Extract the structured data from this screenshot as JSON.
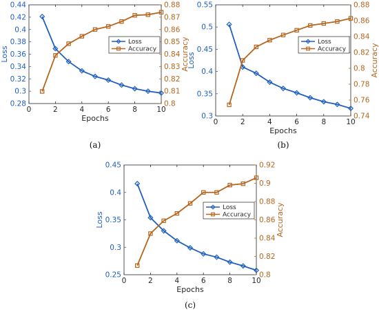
{
  "chart_data": [
    {
      "type": "line",
      "caption": "(a)",
      "xlabel": "Epochs",
      "x": [
        1,
        2,
        3,
        4,
        5,
        6,
        7,
        8,
        9,
        10
      ],
      "xlim": [
        0,
        10
      ],
      "xticks": [
        0,
        2,
        4,
        6,
        8,
        10
      ],
      "y_left": {
        "label": "Loss",
        "lim": [
          0.28,
          0.44
        ],
        "ticks": [
          0.28,
          0.3,
          0.32,
          0.34,
          0.36,
          0.38,
          0.4,
          0.42,
          0.44
        ]
      },
      "y_right": {
        "label": "Accuracy",
        "lim": [
          0.8,
          0.88
        ],
        "ticks": [
          0.8,
          0.81,
          0.82,
          0.83,
          0.84,
          0.85,
          0.86,
          0.87,
          0.88
        ]
      },
      "series": [
        {
          "name": "Loss",
          "axis": "left",
          "color": "#1f5fbf",
          "marker": "diamond",
          "values": [
            0.421,
            0.369,
            0.348,
            0.333,
            0.324,
            0.318,
            0.31,
            0.304,
            0.3,
            0.297
          ]
        },
        {
          "name": "Accuracy",
          "axis": "right",
          "color": "#b5651d",
          "marker": "square",
          "values": [
            0.8098,
            0.839,
            0.8485,
            0.8545,
            0.86,
            0.8625,
            0.8665,
            0.8715,
            0.872,
            0.874
          ]
        }
      ],
      "legend": "top-right",
      "grid": false
    },
    {
      "type": "line",
      "caption": "(b)",
      "xlabel": "Epochs",
      "x": [
        1,
        2,
        3,
        4,
        5,
        6,
        7,
        8,
        9,
        10
      ],
      "xlim": [
        0,
        10
      ],
      "xticks": [
        0,
        2,
        4,
        6,
        8,
        10
      ],
      "y_left": {
        "label": "Loss",
        "lim": [
          0.3,
          0.55
        ],
        "ticks": [
          0.3,
          0.35,
          0.4,
          0.45,
          0.5,
          0.55
        ]
      },
      "y_right": {
        "label": "Accuracy",
        "lim": [
          0.74,
          0.88
        ],
        "ticks": [
          0.74,
          0.76,
          0.78,
          0.8,
          0.82,
          0.84,
          0.86,
          0.88
        ]
      },
      "series": [
        {
          "name": "Loss",
          "axis": "left",
          "color": "#1f5fbf",
          "marker": "diamond",
          "values": [
            0.506,
            0.41,
            0.396,
            0.376,
            0.362,
            0.352,
            0.341,
            0.332,
            0.326,
            0.317
          ]
        },
        {
          "name": "Accuracy",
          "axis": "right",
          "color": "#b5651d",
          "marker": "square",
          "values": [
            0.754,
            0.81,
            0.827,
            0.8355,
            0.842,
            0.848,
            0.854,
            0.8565,
            0.859,
            0.863
          ]
        }
      ],
      "legend": "top-right",
      "grid": false
    },
    {
      "type": "line",
      "caption": "(c)",
      "xlabel": "Epochs",
      "x": [
        1,
        2,
        3,
        4,
        5,
        6,
        7,
        8,
        9,
        10
      ],
      "xlim": [
        0,
        10
      ],
      "xticks": [
        0,
        2,
        4,
        6,
        8,
        10
      ],
      "y_left": {
        "label": "Loss",
        "lim": [
          0.25,
          0.45
        ],
        "ticks": [
          0.25,
          0.3,
          0.35,
          0.4,
          0.45
        ]
      },
      "y_right": {
        "label": "Accuracy",
        "lim": [
          0.8,
          0.92
        ],
        "ticks": [
          0.8,
          0.82,
          0.84,
          0.86,
          0.88,
          0.9,
          0.92
        ]
      },
      "series": [
        {
          "name": "Loss",
          "axis": "left",
          "color": "#1f5fbf",
          "marker": "diamond",
          "values": [
            0.416,
            0.354,
            0.33,
            0.312,
            0.299,
            0.288,
            0.282,
            0.273,
            0.266,
            0.258
          ]
        },
        {
          "name": "Accuracy",
          "axis": "right",
          "color": "#b5651d",
          "marker": "square",
          "values": [
            0.81,
            0.845,
            0.859,
            0.867,
            0.878,
            0.89,
            0.89,
            0.898,
            0.8995,
            0.906
          ]
        }
      ],
      "legend": "top-right",
      "grid": false
    }
  ]
}
